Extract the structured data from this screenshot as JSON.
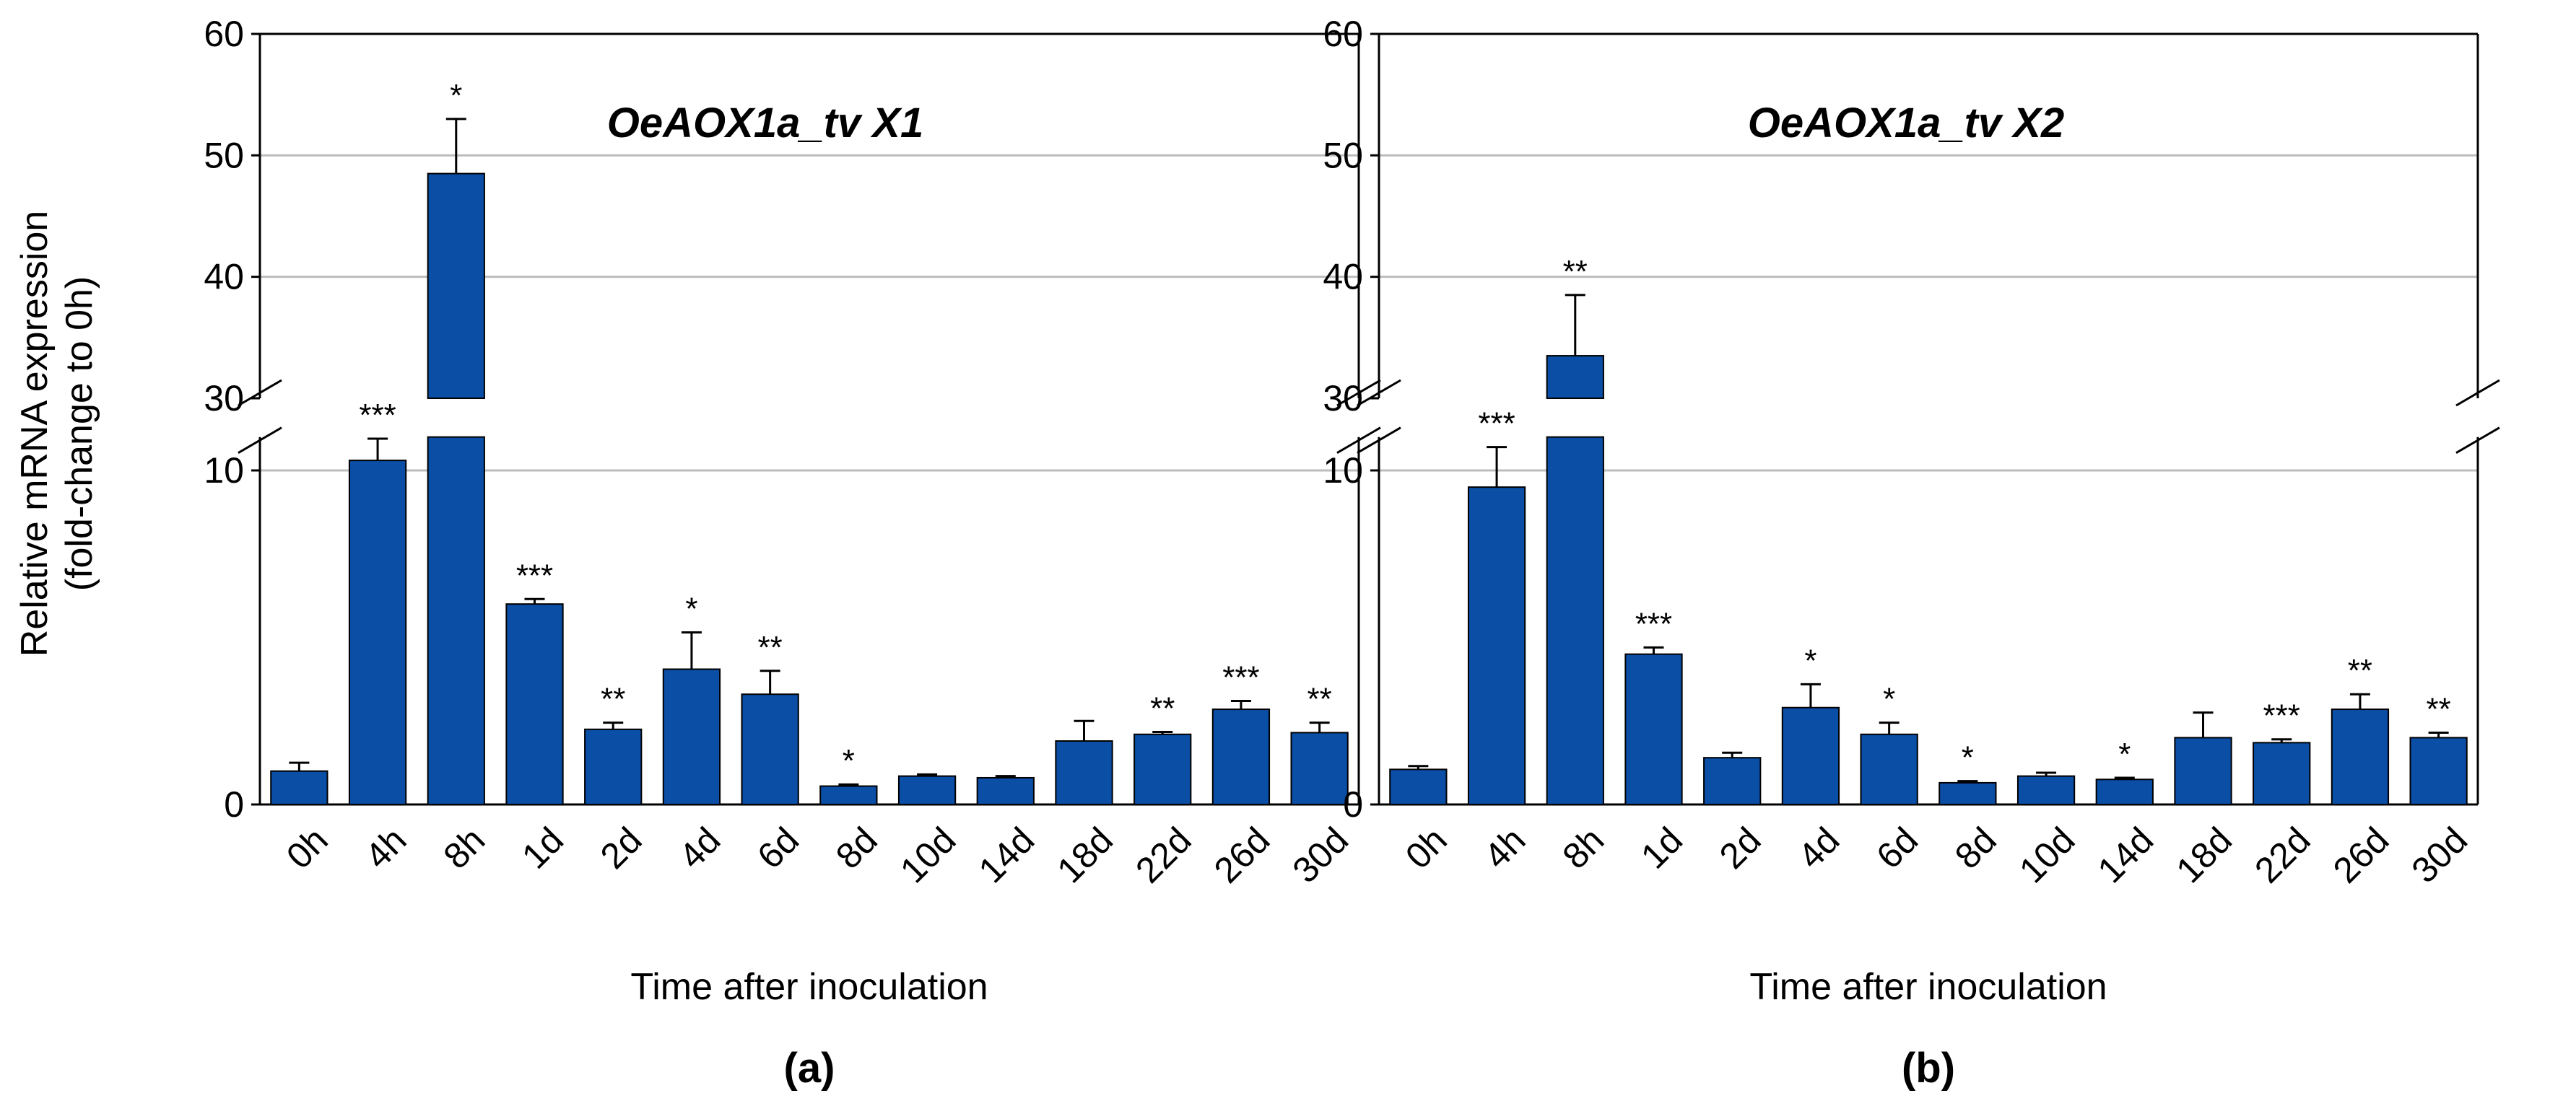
{
  "colors": {
    "bar": "#0a4ea6",
    "bar_edge": "#000000",
    "grid": "#bdbdbd",
    "axis": "#000000"
  },
  "chart_data": [
    {
      "type": "bar",
      "title": "OeAOX1a_tv X1",
      "panel_label": "(a)",
      "xlabel": "Time after inoculation",
      "ylabel": "Relative mRNA expression",
      "ylabel_line2": "(fold-change to 0h)",
      "broken_axis": true,
      "lower_ylim": [
        0,
        11
      ],
      "upper_ylim": [
        30,
        60
      ],
      "lower_yticks": [
        0,
        10
      ],
      "upper_yticks": [
        30,
        40,
        50,
        60
      ],
      "grid": true,
      "categories": [
        "0h",
        "4h",
        "8h",
        "1d",
        "2d",
        "4d",
        "6d",
        "8d",
        "10d",
        "14d",
        "18d",
        "22d",
        "26d",
        "30d"
      ],
      "values": [
        1.0,
        10.3,
        48.5,
        6.0,
        2.25,
        4.05,
        3.3,
        0.55,
        0.85,
        0.8,
        1.9,
        2.1,
        2.85,
        2.15
      ],
      "errors": [
        0.25,
        0.65,
        4.5,
        0.15,
        0.2,
        1.1,
        0.7,
        0.05,
        0.05,
        0.05,
        0.6,
        0.07,
        0.25,
        0.3
      ],
      "significance": [
        "",
        "***",
        "*",
        "***",
        "**",
        "*",
        "**",
        "*",
        "",
        "",
        "",
        "**",
        "***",
        "**"
      ]
    },
    {
      "type": "bar",
      "title": "OeAOX1a_tv X2",
      "panel_label": "(b)",
      "xlabel": "Time after inoculation",
      "ylabel": "",
      "broken_axis": true,
      "lower_ylim": [
        0,
        11
      ],
      "upper_ylim": [
        30,
        60
      ],
      "lower_yticks": [
        0,
        10
      ],
      "upper_yticks": [
        30,
        40,
        50,
        60
      ],
      "grid": true,
      "categories": [
        "0h",
        "4h",
        "8h",
        "1d",
        "2d",
        "4d",
        "6d",
        "8d",
        "10d",
        "14d",
        "18d",
        "22d",
        "26d",
        "30d"
      ],
      "values": [
        1.05,
        9.5,
        33.5,
        4.5,
        1.4,
        2.9,
        2.1,
        0.65,
        0.85,
        0.75,
        2.0,
        1.85,
        2.85,
        2.0
      ],
      "errors": [
        0.1,
        1.2,
        5.0,
        0.2,
        0.15,
        0.7,
        0.35,
        0.05,
        0.1,
        0.05,
        0.75,
        0.1,
        0.45,
        0.15
      ],
      "significance": [
        "",
        "***",
        "**",
        "***",
        "",
        "*",
        "*",
        "*",
        "",
        "*",
        "",
        "***",
        "**",
        "**"
      ]
    }
  ]
}
